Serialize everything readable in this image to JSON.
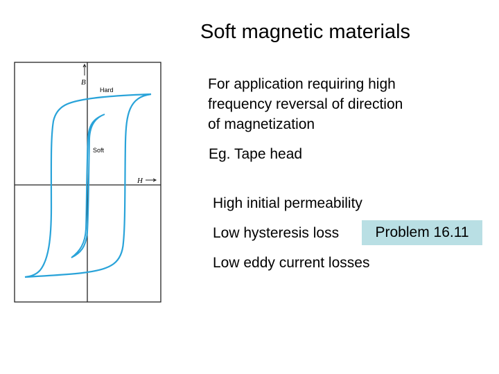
{
  "title": "Soft magnetic materials",
  "intro_lines": [
    "For application requiring high",
    "frequency reversal of direction",
    "of magnetization"
  ],
  "example": "Eg. Tape head",
  "bullets": [
    "High initial permeability",
    "Low hysteresis loss",
    "Low eddy current losses"
  ],
  "problem_label": "Problem 16.11",
  "problem_bg": "#b9dfe4",
  "diagram": {
    "y_axis_label": "B",
    "x_axis_label": "H",
    "hard_label": "Hard",
    "soft_label": "Soft",
    "curve_color": "#29a3d9"
  }
}
